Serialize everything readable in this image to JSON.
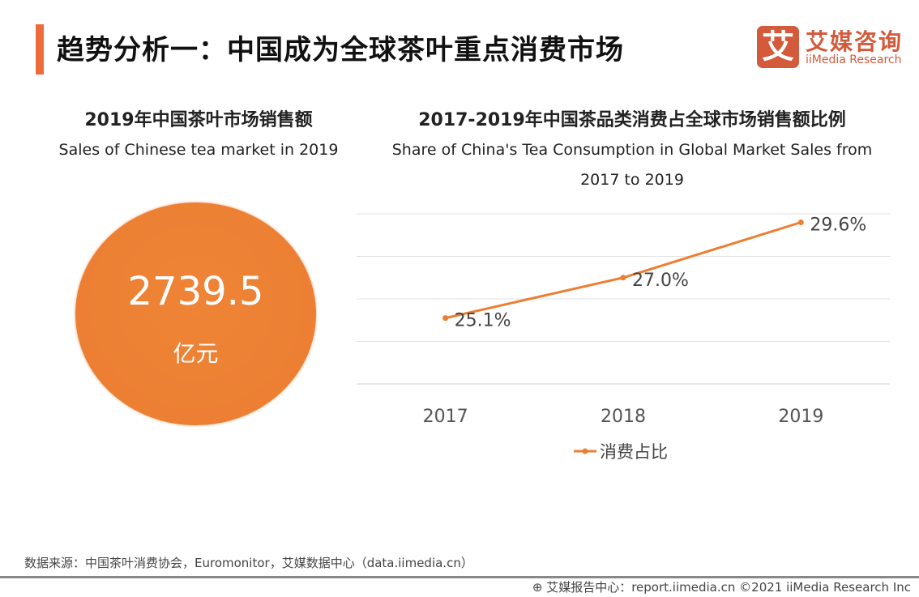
{
  "header": {
    "title": "趋势分析一：中国成为全球茶叶重点消费市场",
    "logo_mark": "艾",
    "logo_cn": "艾媒咨询",
    "logo_en": "iiMedia Research",
    "accent": "#ee6b3b"
  },
  "left": {
    "title": "2019年中国茶叶市场销售额",
    "subtitle": "Sales of Chinese tea market in 2019",
    "value": "2739.5",
    "unit": "亿元",
    "color": "#ed7d31"
  },
  "chart_data": {
    "type": "line",
    "title": "2017-2019年中国茶品类消费占全球市场销售额比例",
    "subtitle": "Share of China's Tea Consumption in Global Market Sales from 2017 to 2019",
    "categories": [
      "2017",
      "2018",
      "2019"
    ],
    "series": [
      {
        "name": "消费占比",
        "values": [
          25.1,
          27.0,
          29.6
        ],
        "labels": [
          "25.1%",
          "27.0%",
          "29.6%"
        ],
        "color": "#ed7d31"
      }
    ],
    "ylim": [
      22,
      30
    ],
    "grid": true,
    "legend": "bottom"
  },
  "footer": {
    "source": "数据来源：中国茶叶消费协会，Euromonitor，艾媒数据中心（data.iimedia.cn）",
    "credit": "艾媒报告中心：report.iimedia.cn   ©2021  iiMedia Research  Inc"
  }
}
